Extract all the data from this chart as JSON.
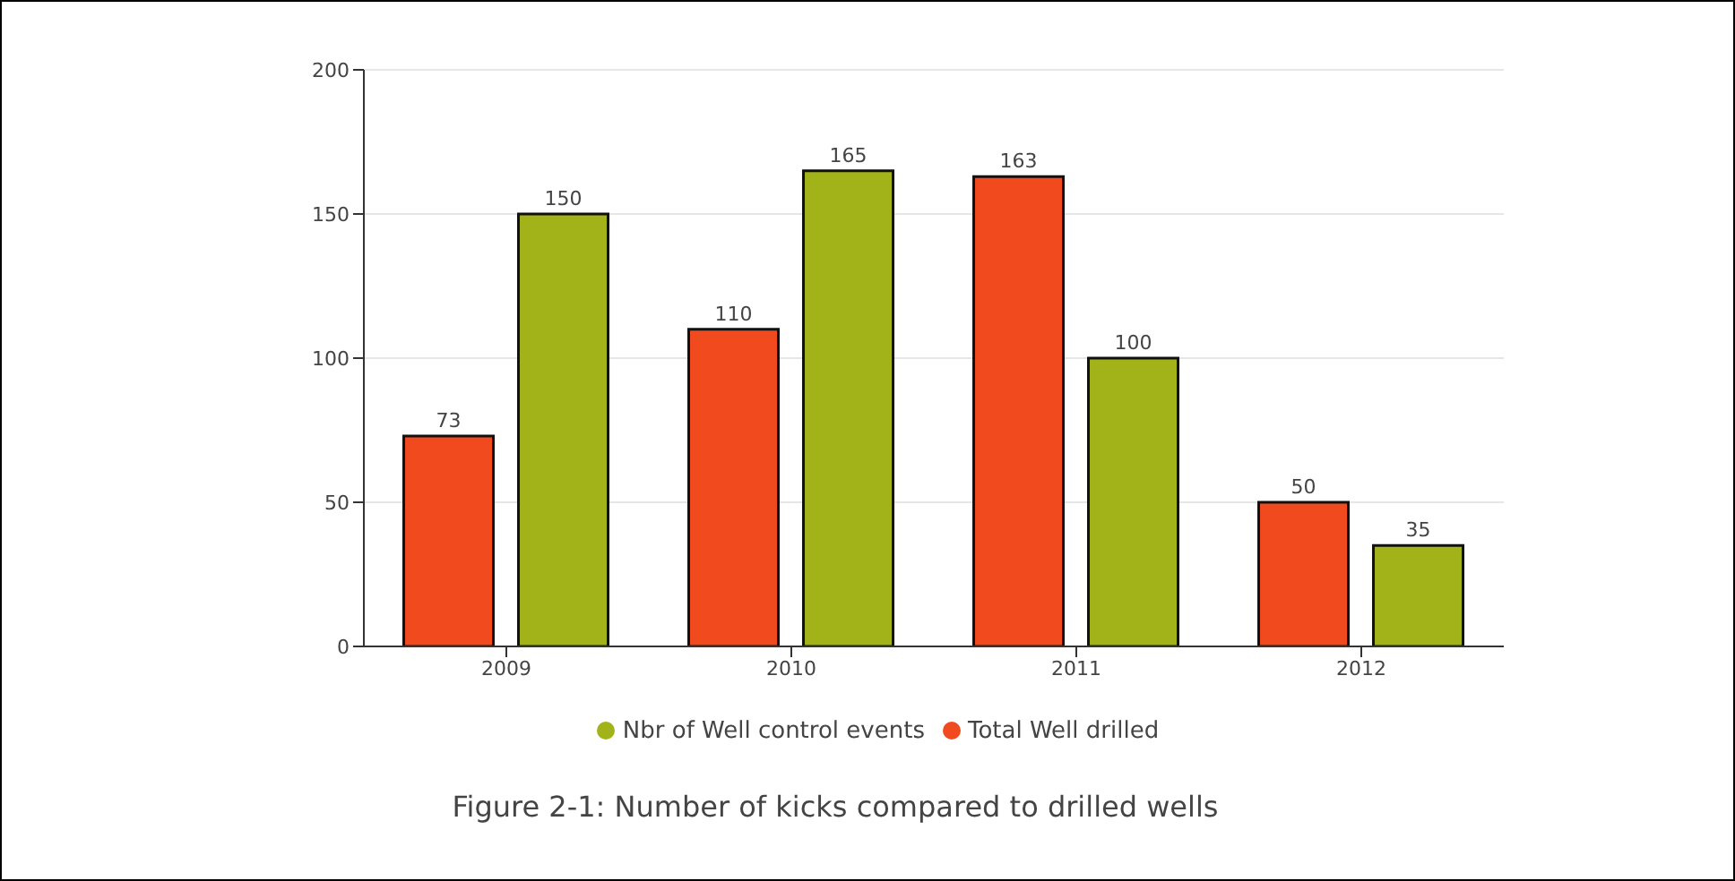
{
  "chart_data": {
    "type": "bar",
    "categories": [
      "2009",
      "2010",
      "2011",
      "2012"
    ],
    "series": [
      {
        "name": "Total Well drilled",
        "color": "#f24a1f",
        "values": [
          73,
          110,
          163,
          50
        ]
      },
      {
        "name": "Nbr of Well control events",
        "color": "#a2b31a",
        "values": [
          150,
          165,
          100,
          35
        ]
      }
    ],
    "ylim": [
      0,
      200
    ],
    "yticks": [
      0,
      50,
      100,
      150,
      200
    ],
    "grid": "y",
    "legend": "bottom",
    "data_labels": true,
    "annotations": [
      "Figure 2-1: Number of kicks compared to drilled wells"
    ]
  }
}
